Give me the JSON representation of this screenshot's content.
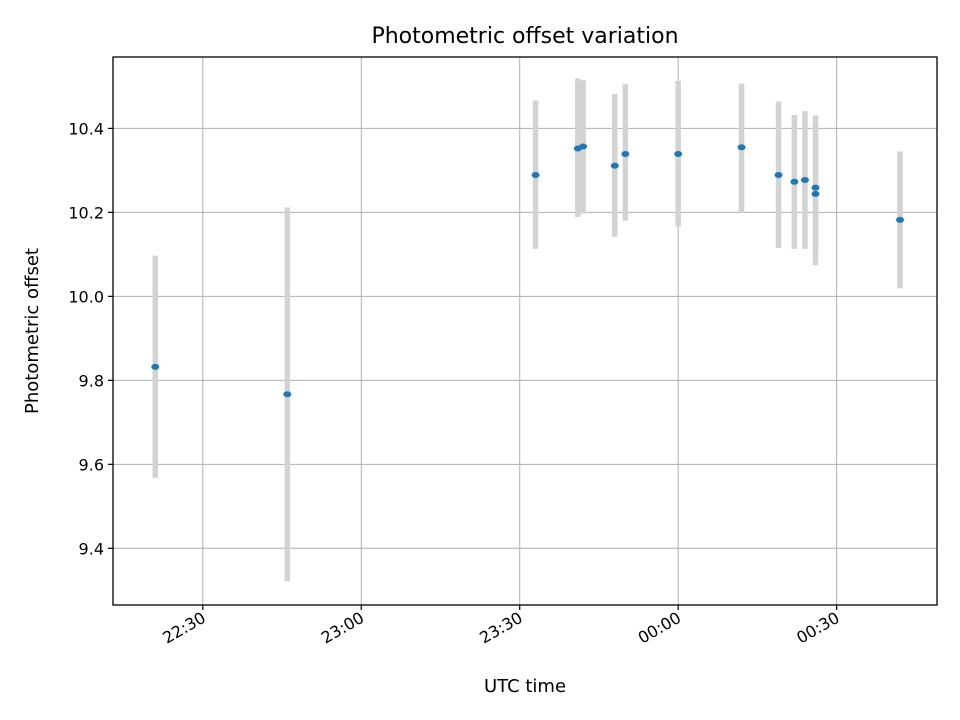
{
  "chart_data": {
    "type": "scatter",
    "title": "Photometric offset variation",
    "xlabel": "UTC time",
    "ylabel": "Photometric offset",
    "x_scale": "time",
    "xlim": [
      "22:13",
      "00:49"
    ],
    "ylim": [
      9.265,
      10.57
    ],
    "x_ticks": [
      "22:30",
      "23:00",
      "23:30",
      "00:00",
      "00:30"
    ],
    "y_ticks": [
      "9.4",
      "9.6",
      "9.8",
      "10.0",
      "10.2",
      "10.4"
    ],
    "grid": true,
    "point_color": "#1f77b4",
    "errorbar_color": "#d3d3d3",
    "points": [
      {
        "x": "22:21",
        "y": 9.832,
        "ylow": 9.568,
        "yhigh": 10.097
      },
      {
        "x": "22:46",
        "y": 9.767,
        "ylow": 9.322,
        "yhigh": 10.212
      },
      {
        "x": "23:33",
        "y": 10.289,
        "ylow": 10.113,
        "yhigh": 10.466
      },
      {
        "x": "23:41",
        "y": 10.352,
        "ylow": 10.189,
        "yhigh": 10.519
      },
      {
        "x": "23:42",
        "y": 10.357,
        "ylow": 10.197,
        "yhigh": 10.515
      },
      {
        "x": "23:48",
        "y": 10.311,
        "ylow": 10.142,
        "yhigh": 10.482
      },
      {
        "x": "23:50",
        "y": 10.339,
        "ylow": 10.18,
        "yhigh": 10.505
      },
      {
        "x": "00:00",
        "y": 10.339,
        "ylow": 10.166,
        "yhigh": 10.513
      },
      {
        "x": "00:12",
        "y": 10.355,
        "ylow": 10.199,
        "yhigh": 10.507
      },
      {
        "x": "00:19",
        "y": 10.289,
        "ylow": 10.115,
        "yhigh": 10.464
      },
      {
        "x": "00:22",
        "y": 10.273,
        "ylow": 10.113,
        "yhigh": 10.432
      },
      {
        "x": "00:24",
        "y": 10.277,
        "ylow": 10.113,
        "yhigh": 10.441
      },
      {
        "x": "00:26",
        "y": 10.259,
        "ylow": 10.103,
        "yhigh": 10.431
      },
      {
        "x": "00:26",
        "y": 10.244,
        "ylow": 10.074,
        "yhigh": 10.414
      },
      {
        "x": "00:42",
        "y": 10.182,
        "ylow": 10.019,
        "yhigh": 10.345
      }
    ]
  }
}
